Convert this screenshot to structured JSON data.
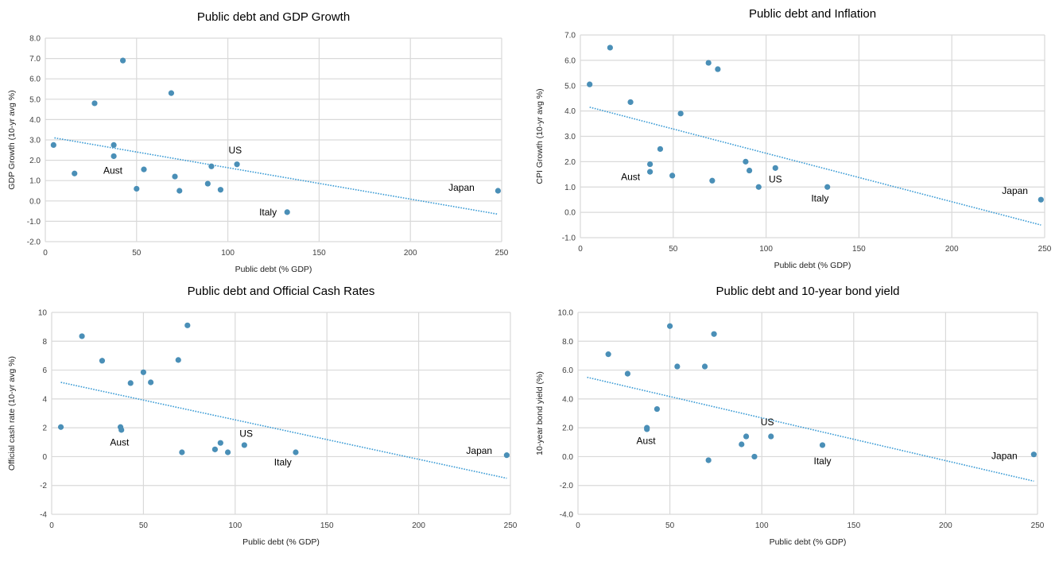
{
  "chart_data": [
    {
      "type": "scatter",
      "title": "Public debt and GDP Growth",
      "xlabel": "Public debt (% GDP)",
      "ylabel": "GDP Growth (10-yr avg %)",
      "xlim": [
        0,
        250
      ],
      "ylim": [
        -2,
        8
      ],
      "xticks": [
        0,
        50,
        100,
        150,
        200,
        250
      ],
      "xtick_labels": [
        "0",
        "50",
        "100",
        "150",
        "200",
        "250"
      ],
      "yticks": [
        -2,
        -1,
        0,
        1,
        2,
        3,
        4,
        5,
        6,
        7,
        8
      ],
      "ytick_labels": [
        "-2.0",
        "-1.0",
        "0.0",
        "1.0",
        "2.0",
        "3.0",
        "4.0",
        "5.0",
        "6.0",
        "7.0",
        "8.0"
      ],
      "grid": true,
      "points": [
        {
          "x": 4.5,
          "y": 2.75
        },
        {
          "x": 16,
          "y": 1.35
        },
        {
          "x": 27,
          "y": 4.8
        },
        {
          "x": 42.5,
          "y": 6.9
        },
        {
          "x": 37.5,
          "y": 2.75
        },
        {
          "x": 37.5,
          "y": 2.2
        },
        {
          "x": 50,
          "y": 0.6
        },
        {
          "x": 54,
          "y": 1.55
        },
        {
          "x": 69,
          "y": 5.3
        },
        {
          "x": 71,
          "y": 1.2
        },
        {
          "x": 73.5,
          "y": 0.5
        },
        {
          "x": 89,
          "y": 0.85
        },
        {
          "x": 91,
          "y": 1.7
        },
        {
          "x": 96,
          "y": 0.55
        },
        {
          "x": 105,
          "y": 1.8
        },
        {
          "x": 132.5,
          "y": -0.55
        },
        {
          "x": 248,
          "y": 0.5
        }
      ],
      "trendline": {
        "x": [
          5,
          248
        ],
        "y": [
          3.1,
          -0.65
        ]
      },
      "annotations": [
        {
          "text": "Aust",
          "x": 37,
          "y": 1.5
        },
        {
          "text": "US",
          "x": 104,
          "y": 2.5
        },
        {
          "text": "Italy",
          "x": 122,
          "y": -0.55
        },
        {
          "text": "Japan",
          "x": 228,
          "y": 0.65
        }
      ]
    },
    {
      "type": "scatter",
      "title": "Public debt and Inflation",
      "xlabel": "Public debt (% GDP)",
      "ylabel": "CPI Growth (10-yr avg %)",
      "xlim": [
        0,
        250
      ],
      "ylim": [
        -1,
        7
      ],
      "xticks": [
        0,
        50,
        100,
        150,
        200,
        250
      ],
      "xtick_labels": [
        "0",
        "50",
        "100",
        "150",
        "200",
        "250"
      ],
      "yticks": [
        -1,
        0,
        1,
        2,
        3,
        4,
        5,
        6,
        7
      ],
      "ytick_labels": [
        "-1.0",
        "0.0",
        "1.0",
        "2.0",
        "3.0",
        "4.0",
        "5.0",
        "6.0",
        "7.0"
      ],
      "grid": true,
      "points": [
        {
          "x": 5,
          "y": 5.05
        },
        {
          "x": 16,
          "y": 6.5
        },
        {
          "x": 27,
          "y": 4.35
        },
        {
          "x": 37.5,
          "y": 1.9
        },
        {
          "x": 37.5,
          "y": 1.6
        },
        {
          "x": 43,
          "y": 2.5
        },
        {
          "x": 49.5,
          "y": 1.45
        },
        {
          "x": 54,
          "y": 3.9
        },
        {
          "x": 69,
          "y": 5.9
        },
        {
          "x": 71,
          "y": 1.25
        },
        {
          "x": 74,
          "y": 5.65
        },
        {
          "x": 89,
          "y": 2.0
        },
        {
          "x": 91,
          "y": 1.65
        },
        {
          "x": 96,
          "y": 1.0
        },
        {
          "x": 105,
          "y": 1.75
        },
        {
          "x": 133,
          "y": 1.0
        },
        {
          "x": 248,
          "y": 0.5
        }
      ],
      "trendline": {
        "x": [
          5,
          248
        ],
        "y": [
          4.15,
          -0.5
        ]
      },
      "annotations": [
        {
          "text": "Aust",
          "x": 27,
          "y": 1.4
        },
        {
          "text": "US",
          "x": 105,
          "y": 1.3
        },
        {
          "text": "Italy",
          "x": 129,
          "y": 0.55
        },
        {
          "text": "Japan",
          "x": 234,
          "y": 0.85
        }
      ]
    },
    {
      "type": "scatter",
      "title": "Public debt and Official Cash Rates",
      "xlabel": "Public debt (% GDP)",
      "ylabel": "Official cash rate (10-yr avg %)",
      "xlim": [
        0,
        250
      ],
      "ylim": [
        -4,
        10
      ],
      "xticks": [
        0,
        50,
        100,
        150,
        200,
        250
      ],
      "xtick_labels": [
        "0",
        "50",
        "100",
        "150",
        "200",
        "250"
      ],
      "yticks": [
        -4,
        -2,
        0,
        2,
        4,
        6,
        8,
        10
      ],
      "ytick_labels": [
        "-4",
        "-2",
        "0",
        "2",
        "4",
        "6",
        "8",
        "10"
      ],
      "grid": true,
      "points": [
        {
          "x": 5,
          "y": 2.05
        },
        {
          "x": 16.5,
          "y": 8.35
        },
        {
          "x": 27.5,
          "y": 6.65
        },
        {
          "x": 37.5,
          "y": 2.05
        },
        {
          "x": 38,
          "y": 1.85
        },
        {
          "x": 43,
          "y": 5.1
        },
        {
          "x": 50,
          "y": 5.85
        },
        {
          "x": 54,
          "y": 5.15
        },
        {
          "x": 69,
          "y": 6.7
        },
        {
          "x": 71,
          "y": 0.3
        },
        {
          "x": 74,
          "y": 9.1
        },
        {
          "x": 89,
          "y": 0.5
        },
        {
          "x": 92,
          "y": 0.95
        },
        {
          "x": 96,
          "y": 0.3
        },
        {
          "x": 105,
          "y": 0.8
        },
        {
          "x": 133,
          "y": 0.3
        },
        {
          "x": 248,
          "y": 0.1
        }
      ],
      "trendline": {
        "x": [
          5,
          248
        ],
        "y": [
          5.15,
          -1.5
        ]
      },
      "annotations": [
        {
          "text": "Aust",
          "x": 37,
          "y": 1.0
        },
        {
          "text": "US",
          "x": 106,
          "y": 1.6
        },
        {
          "text": "Italy",
          "x": 126,
          "y": -0.4
        },
        {
          "text": "Japan",
          "x": 233,
          "y": 0.4
        }
      ]
    },
    {
      "type": "scatter",
      "title": "Public debt and 10-year bond yield",
      "xlabel": "Public debt (% GDP)",
      "ylabel": "10-year bond yield (%)",
      "xlim": [
        0,
        250
      ],
      "ylim": [
        -4,
        10
      ],
      "xticks": [
        0,
        50,
        100,
        150,
        200,
        250
      ],
      "xtick_labels": [
        "0",
        "50",
        "100",
        "150",
        "200",
        "250"
      ],
      "yticks": [
        -4,
        -2,
        0,
        2,
        4,
        6,
        8,
        10
      ],
      "ytick_labels": [
        "-4.0",
        "-2.0",
        "0.0",
        "2.0",
        "4.0",
        "6.0",
        "8.0",
        "10.0"
      ],
      "grid": true,
      "points": [
        {
          "x": 16.5,
          "y": 7.1
        },
        {
          "x": 27,
          "y": 5.75
        },
        {
          "x": 37.5,
          "y": 2.0
        },
        {
          "x": 37.5,
          "y": 1.9
        },
        {
          "x": 43,
          "y": 3.3
        },
        {
          "x": 50,
          "y": 9.05
        },
        {
          "x": 54,
          "y": 6.25
        },
        {
          "x": 69,
          "y": 6.25
        },
        {
          "x": 71,
          "y": -0.25
        },
        {
          "x": 74,
          "y": 8.5
        },
        {
          "x": 89,
          "y": 0.85
        },
        {
          "x": 91.5,
          "y": 1.4
        },
        {
          "x": 96,
          "y": 0.0
        },
        {
          "x": 105,
          "y": 1.4
        },
        {
          "x": 133,
          "y": 0.8
        },
        {
          "x": 248,
          "y": 0.15
        }
      ],
      "trendline": {
        "x": [
          5,
          248
        ],
        "y": [
          5.5,
          -1.7
        ]
      },
      "annotations": [
        {
          "text": "Aust",
          "x": 37,
          "y": 1.1
        },
        {
          "text": "US",
          "x": 103,
          "y": 2.4
        },
        {
          "text": "Italy",
          "x": 133,
          "y": -0.3
        },
        {
          "text": "Japan",
          "x": 232,
          "y": 0.05
        }
      ]
    }
  ],
  "colors": {
    "marker": "#4a8fb7",
    "trendline": "#3a9bd5",
    "grid": "#d9d9d9"
  }
}
